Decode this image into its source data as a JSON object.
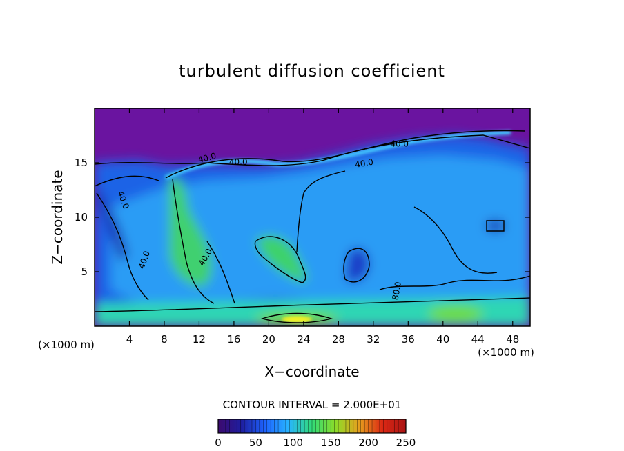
{
  "chart_data": {
    "type": "heatmap",
    "title": "turbulent diffusion coefficient",
    "xlabel": "X−coordinate",
    "ylabel": "Z−coordinate",
    "x_unit": "(×1000 m)",
    "x_unit_right": "(×1000 m)",
    "xlim": [
      0,
      50
    ],
    "ylim": [
      0,
      20
    ],
    "x_ticks": [
      4,
      8,
      12,
      16,
      20,
      24,
      28,
      32,
      36,
      40,
      44,
      48
    ],
    "y_ticks": [
      5,
      10,
      15
    ],
    "contour_interval_text": "CONTOUR INTERVAL = 2.000E+01",
    "contour_labels": [
      {
        "text": "40.0",
        "x": 3,
        "y": 11.5,
        "rotate": 70
      },
      {
        "text": "40.0",
        "x": 6,
        "y": 6.0,
        "rotate": -70
      },
      {
        "text": "40.0",
        "x": 13,
        "y": 15.2,
        "rotate": -15
      },
      {
        "text": "40.0",
        "x": 16.5,
        "y": 14.8,
        "rotate": 0
      },
      {
        "text": "40.0",
        "x": 35,
        "y": 16.5,
        "rotate": 0
      },
      {
        "text": "40.0",
        "x": 31,
        "y": 14.7,
        "rotate": -10
      },
      {
        "text": "40.0",
        "x": 13,
        "y": 6.2,
        "rotate": -60
      },
      {
        "text": "80.0",
        "x": 35,
        "y": 3.2,
        "rotate": -80
      }
    ],
    "colorbar": {
      "min": 0,
      "max": 250,
      "ticks": [
        "0",
        "50",
        "100",
        "150",
        "200",
        "250"
      ],
      "colors": [
        "#3c0a6e",
        "#1e1ea0",
        "#1e64ff",
        "#28b4ff",
        "#32dc78",
        "#8cdc28",
        "#e6a01e",
        "#dc2814",
        "#aa1414"
      ]
    },
    "field_colors": {
      "background_top": "#6a14a0",
      "mid": "#1e6ef0",
      "low": "#2aa0ff",
      "green": "#3cdc6e",
      "yellow": "#f0f028"
    },
    "grid": false
  }
}
